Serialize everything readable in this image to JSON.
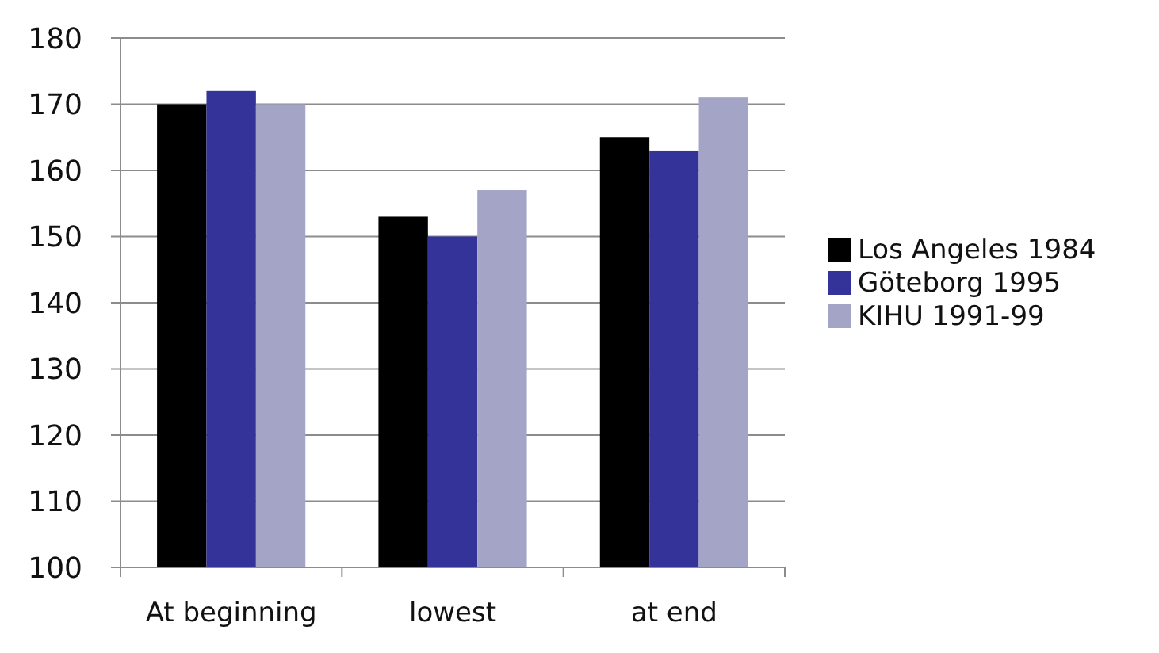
{
  "chart_data": {
    "type": "bar",
    "categories": [
      "At beginning",
      "lowest",
      "at end"
    ],
    "series": [
      {
        "name": "Los Angeles 1984",
        "color": "#000000",
        "values": [
          170,
          153,
          165
        ]
      },
      {
        "name": "Göteborg 1995",
        "color": "#333399",
        "values": [
          172,
          150,
          163
        ]
      },
      {
        "name": "KIHU 1991-99",
        "color": "#a4a5c6",
        "values": [
          170,
          157,
          171
        ]
      }
    ],
    "ylim": [
      100,
      180
    ],
    "yticks": [
      100,
      110,
      120,
      130,
      140,
      150,
      160,
      170,
      180
    ],
    "grid": "y",
    "legend": "right"
  }
}
